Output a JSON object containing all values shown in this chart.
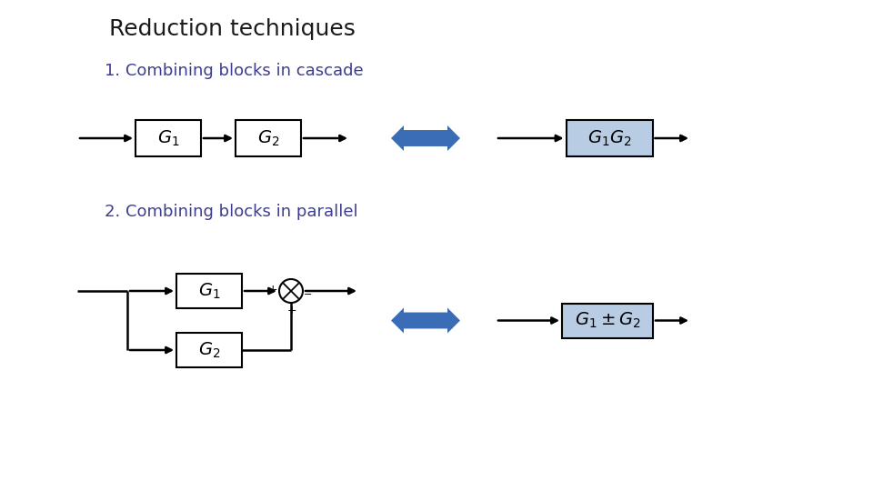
{
  "title": "Reduction techniques",
  "subtitle1": "1. Combining blocks in cascade",
  "subtitle2": "2. Combining blocks in parallel",
  "title_color": "#1a1a1a",
  "subtitle_color": "#3d3d8f",
  "block_fill_white": "#ffffff",
  "block_fill_blue": "#b8cce4",
  "block_edge_color": "#000000",
  "arrow_color": "#3a6db5",
  "line_color": "#000000",
  "background": "#ffffff",
  "title_fontsize": 18,
  "subtitle_fontsize": 13,
  "block_fontsize": 14,
  "lw": 1.8
}
